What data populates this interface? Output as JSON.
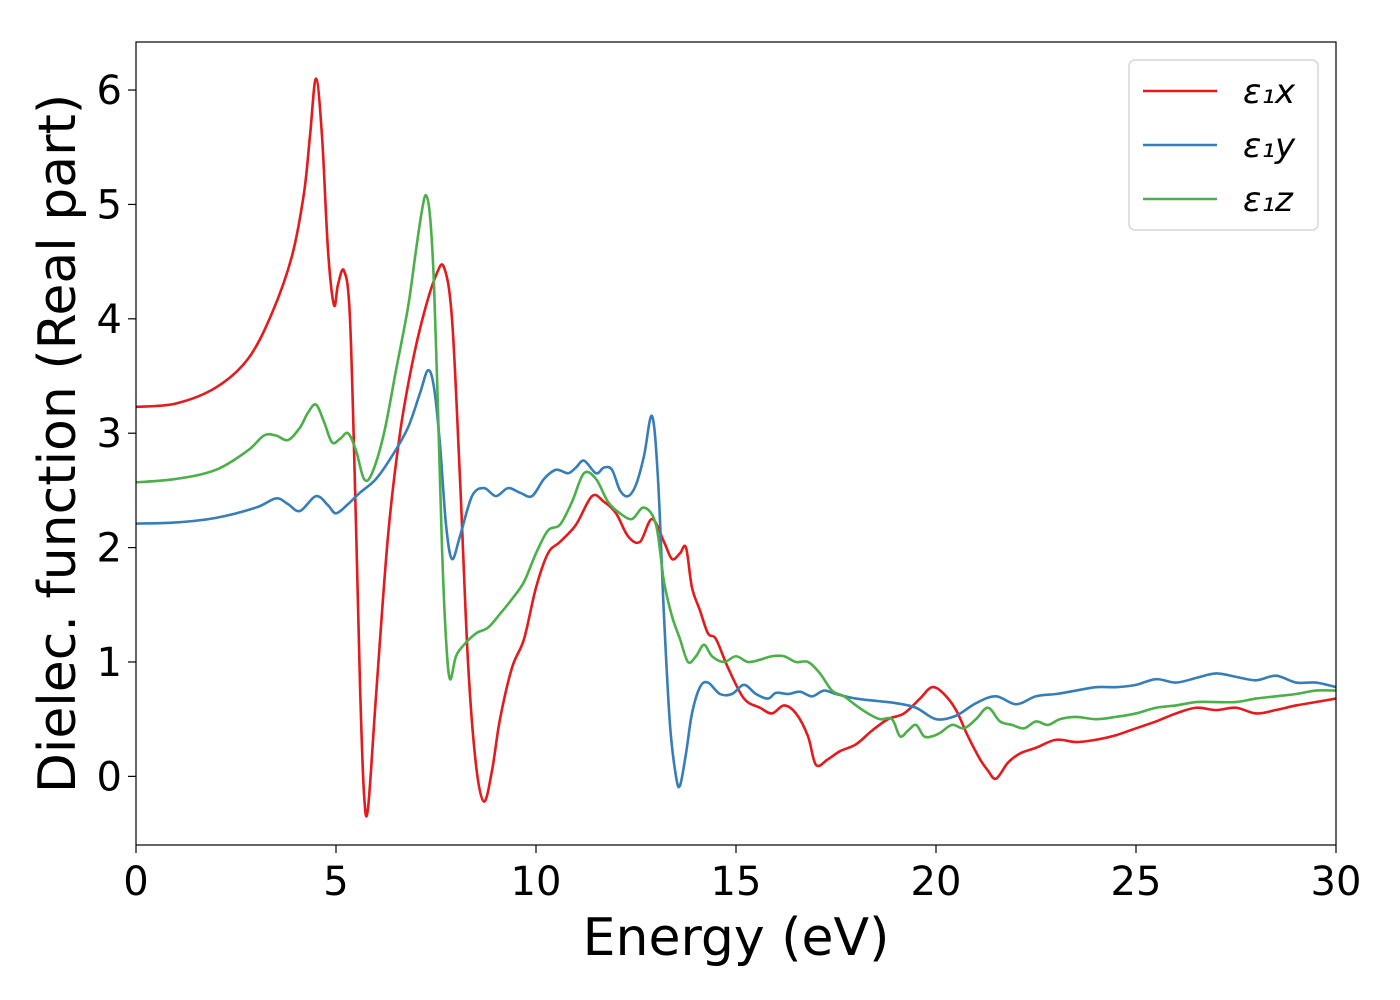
{
  "chart_data": {
    "type": "line",
    "xlabel": "Energy (eV)",
    "ylabel": "Dielec. function (Real part)",
    "xlim": [
      0,
      30
    ],
    "ylim": [
      -0.6,
      6.42
    ],
    "xticks": [
      0,
      5,
      10,
      15,
      20,
      25,
      30
    ],
    "yticks": [
      0,
      1,
      2,
      3,
      4,
      5,
      6
    ],
    "grid": false,
    "legend_position": "top-right",
    "series": [
      {
        "name": "ε₁x",
        "color": "#e41a1c",
        "x": [
          0,
          1,
          2,
          2.8,
          3.4,
          3.9,
          4.2,
          4.35,
          4.5,
          4.65,
          4.8,
          4.95,
          5.05,
          5.2,
          5.35,
          5.5,
          5.6,
          5.7,
          5.8,
          6.0,
          6.3,
          6.6,
          6.9,
          7.2,
          7.5,
          7.7,
          7.9,
          8.1,
          8.3,
          8.5,
          8.7,
          8.9,
          9.1,
          9.4,
          9.7,
          10.0,
          10.3,
          10.6,
          11.0,
          11.4,
          11.7,
          12.0,
          12.3,
          12.6,
          12.9,
          13.2,
          13.4,
          13.6,
          13.75,
          13.9,
          14.1,
          14.3,
          14.5,
          14.8,
          15.2,
          15.6,
          15.9,
          16.2,
          16.5,
          16.8,
          17.0,
          17.3,
          17.6,
          18.0,
          18.4,
          18.8,
          19.2,
          19.6,
          19.9,
          20.2,
          20.5,
          20.8,
          21.1,
          21.3,
          21.5,
          21.8,
          22.1,
          22.5,
          23.0,
          23.5,
          24.0,
          24.5,
          25.0,
          25.5,
          26.0,
          26.5,
          27.0,
          27.5,
          28.0,
          28.5,
          29.0,
          29.5,
          30.0
        ],
        "y": [
          3.23,
          3.26,
          3.4,
          3.65,
          4.05,
          4.55,
          5.1,
          5.6,
          6.1,
          5.6,
          4.6,
          4.12,
          4.3,
          4.42,
          4.0,
          2.2,
          0.8,
          -0.15,
          -0.28,
          0.7,
          2.1,
          3.0,
          3.6,
          4.05,
          4.38,
          4.45,
          4.0,
          2.6,
          1.0,
          0.1,
          -0.22,
          0.05,
          0.5,
          0.95,
          1.2,
          1.65,
          1.95,
          2.05,
          2.2,
          2.45,
          2.4,
          2.3,
          2.1,
          2.05,
          2.25,
          2.05,
          1.9,
          1.95,
          2.0,
          1.65,
          1.45,
          1.25,
          1.2,
          0.95,
          0.68,
          0.6,
          0.55,
          0.62,
          0.55,
          0.35,
          0.1,
          0.15,
          0.22,
          0.28,
          0.4,
          0.5,
          0.55,
          0.68,
          0.78,
          0.72,
          0.58,
          0.35,
          0.15,
          0.05,
          -0.02,
          0.12,
          0.2,
          0.25,
          0.32,
          0.3,
          0.32,
          0.36,
          0.42,
          0.48,
          0.55,
          0.6,
          0.58,
          0.6,
          0.55,
          0.58,
          0.62,
          0.65,
          0.68
        ]
      },
      {
        "name": "ε₁y",
        "color": "#377eb8",
        "x": [
          0,
          1,
          2,
          3,
          3.5,
          3.8,
          4.1,
          4.5,
          4.8,
          5.0,
          5.3,
          5.6,
          6.0,
          6.4,
          6.8,
          7.1,
          7.3,
          7.45,
          7.6,
          7.75,
          7.9,
          8.1,
          8.4,
          8.7,
          9.0,
          9.3,
          9.6,
          9.9,
          10.2,
          10.5,
          10.8,
          11.0,
          11.2,
          11.5,
          11.7,
          11.9,
          12.1,
          12.3,
          12.5,
          12.7,
          12.9,
          13.05,
          13.2,
          13.35,
          13.5,
          13.6,
          13.75,
          13.9,
          14.1,
          14.3,
          14.6,
          14.9,
          15.2,
          15.5,
          15.8,
          16.0,
          16.3,
          16.6,
          16.9,
          17.2,
          17.5,
          18.0,
          18.5,
          19.0,
          19.5,
          20.0,
          20.5,
          21.0,
          21.5,
          22.0,
          22.5,
          23.0,
          23.5,
          24.0,
          24.5,
          25.0,
          25.5,
          26.0,
          26.5,
          27.0,
          27.5,
          28.0,
          28.5,
          29.0,
          29.5,
          30.0
        ],
        "y": [
          2.21,
          2.22,
          2.26,
          2.35,
          2.43,
          2.38,
          2.32,
          2.45,
          2.37,
          2.3,
          2.38,
          2.48,
          2.6,
          2.8,
          3.05,
          3.35,
          3.55,
          3.4,
          2.9,
          2.2,
          1.9,
          2.1,
          2.45,
          2.52,
          2.45,
          2.52,
          2.48,
          2.45,
          2.6,
          2.68,
          2.65,
          2.7,
          2.76,
          2.65,
          2.7,
          2.68,
          2.5,
          2.45,
          2.55,
          2.8,
          3.15,
          2.6,
          1.4,
          0.45,
          0.0,
          -0.08,
          0.2,
          0.55,
          0.78,
          0.82,
          0.72,
          0.72,
          0.8,
          0.72,
          0.68,
          0.73,
          0.72,
          0.74,
          0.7,
          0.75,
          0.72,
          0.68,
          0.66,
          0.64,
          0.6,
          0.5,
          0.53,
          0.64,
          0.7,
          0.63,
          0.7,
          0.72,
          0.75,
          0.78,
          0.78,
          0.8,
          0.85,
          0.82,
          0.86,
          0.9,
          0.87,
          0.84,
          0.88,
          0.82,
          0.82,
          0.78
        ]
      },
      {
        "name": "ε₁z",
        "color": "#4daf4a",
        "x": [
          0,
          1,
          2,
          2.8,
          3.2,
          3.5,
          3.8,
          4.1,
          4.3,
          4.5,
          4.7,
          4.9,
          5.1,
          5.3,
          5.5,
          5.7,
          5.9,
          6.2,
          6.5,
          6.8,
          7.0,
          7.15,
          7.25,
          7.35,
          7.45,
          7.55,
          7.65,
          7.75,
          7.85,
          8.0,
          8.2,
          8.5,
          8.8,
          9.1,
          9.4,
          9.7,
          10.0,
          10.3,
          10.6,
          10.9,
          11.2,
          11.5,
          11.8,
          12.1,
          12.4,
          12.7,
          13.0,
          13.2,
          13.4,
          13.6,
          13.8,
          14.0,
          14.2,
          14.4,
          14.7,
          15.0,
          15.3,
          15.6,
          15.9,
          16.2,
          16.5,
          16.8,
          17.1,
          17.4,
          17.7,
          18.0,
          18.3,
          18.6,
          18.9,
          19.1,
          19.3,
          19.5,
          19.7,
          19.9,
          20.1,
          20.4,
          20.7,
          21.0,
          21.3,
          21.6,
          21.9,
          22.2,
          22.5,
          22.8,
          23.1,
          23.5,
          24.0,
          24.5,
          25.0,
          25.5,
          26.0,
          26.5,
          27.0,
          27.5,
          28.0,
          28.5,
          29.0,
          29.5,
          30.0
        ],
        "y": [
          2.57,
          2.6,
          2.68,
          2.85,
          2.98,
          2.98,
          2.94,
          3.05,
          3.18,
          3.25,
          3.1,
          2.92,
          2.95,
          3.0,
          2.85,
          2.6,
          2.65,
          3.0,
          3.55,
          4.1,
          4.6,
          4.95,
          5.08,
          4.9,
          4.3,
          3.2,
          2.0,
          1.2,
          0.85,
          1.05,
          1.15,
          1.25,
          1.3,
          1.42,
          1.55,
          1.7,
          1.95,
          2.15,
          2.2,
          2.4,
          2.65,
          2.6,
          2.4,
          2.3,
          2.25,
          2.35,
          2.2,
          1.7,
          1.4,
          1.2,
          1.0,
          1.05,
          1.15,
          1.05,
          1.0,
          1.05,
          1.0,
          1.02,
          1.05,
          1.05,
          1.0,
          1.0,
          0.9,
          0.75,
          0.7,
          0.62,
          0.55,
          0.5,
          0.5,
          0.35,
          0.4,
          0.45,
          0.35,
          0.35,
          0.38,
          0.45,
          0.42,
          0.5,
          0.6,
          0.48,
          0.45,
          0.42,
          0.48,
          0.45,
          0.5,
          0.52,
          0.5,
          0.52,
          0.55,
          0.6,
          0.62,
          0.65,
          0.65,
          0.65,
          0.68,
          0.7,
          0.72,
          0.75,
          0.75
        ]
      }
    ]
  }
}
